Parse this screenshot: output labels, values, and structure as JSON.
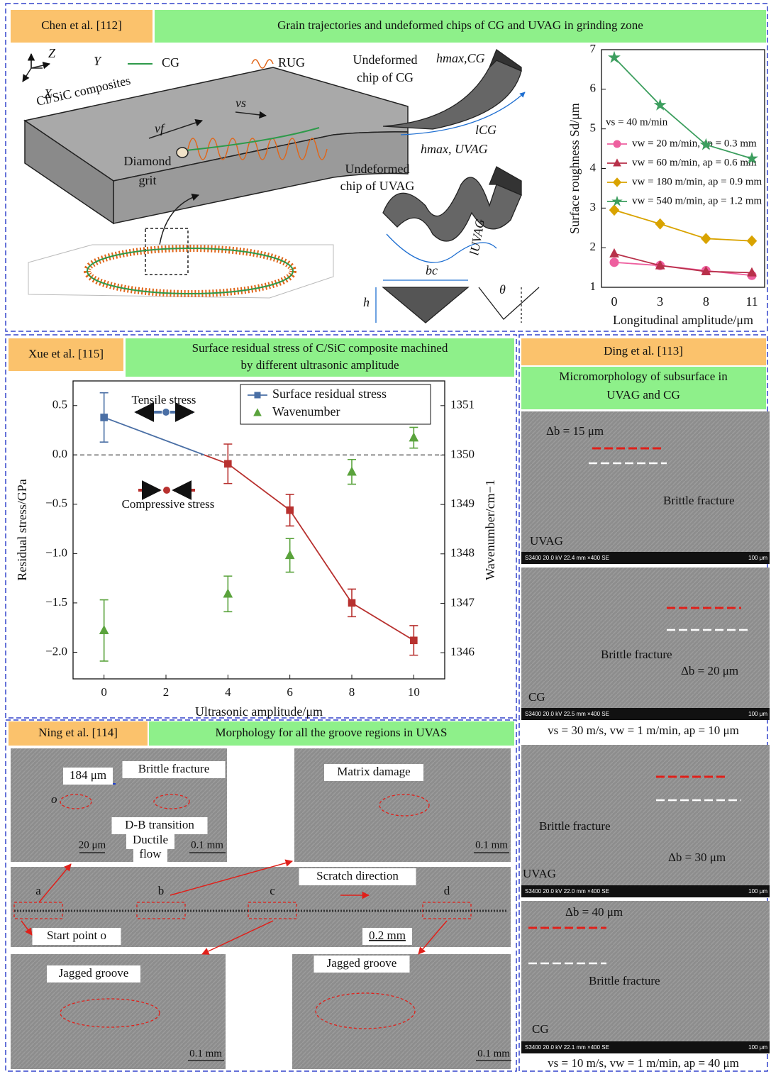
{
  "panel_a": {
    "citation": "Chen et al. [112]",
    "title": "Grain trajectories and undeformed chips of CG and UVAG in grinding zone",
    "diagram": {
      "axis_z": "Z",
      "axis_y": "Y",
      "axis_x": "X",
      "legend_cg": "CG",
      "legend_rug": "RUG",
      "material": "Cf/SiC composites",
      "feed": "vf",
      "speed": "vs",
      "grit_1": "Diamond",
      "grit_2": "grit",
      "chip_cg_1": "Undeformed",
      "chip_cg_2": "chip of CG",
      "hmax_cg": "hmax,CG",
      "l_cg": "lCG",
      "hmax_uvag": "hmax, UVAG",
      "chip_uvag_1": "Undeformed",
      "chip_uvag_2": "chip of UVAG",
      "l_uvag": "lUVAG",
      "bc": "bc",
      "h": "h",
      "theta": "θ"
    }
  },
  "panel_b": {
    "citation": "Xue et al. [115]",
    "title_1": "Surface residual stress of C/SiC composite machined",
    "title_2": "by different ultrasonic amplitude",
    "tensile": "Tensile stress",
    "compressive": "Compressive stress"
  },
  "panel_c": {
    "citation": "Ding et al. [113]",
    "title_1": "Micromorphology of subsurface in",
    "title_2": "UVAG and CG",
    "images": [
      {
        "delta": "Δb = 15 μm",
        "feature": "Brittle fracture",
        "mode": "UVAG",
        "info": "S3400 20.0 kV 22.4 mm ×400 SE",
        "scale": "100 μm"
      },
      {
        "delta": "Δb = 20 μm",
        "feature": "Brittle fracture",
        "mode": "CG",
        "info": "S3400 20.0 kV 22.5 mm ×400 SE",
        "scale": "100 μm"
      },
      {
        "delta": "Δb = 30 μm",
        "feature": "Brittle fracture",
        "mode": "UVAG",
        "info": "S3400 20.0 kV 22.0 mm ×400 SE",
        "scale": "100 μm"
      },
      {
        "delta": "Δb = 40 μm",
        "feature": "Brittle fracture",
        "mode": "CG",
        "info": "S3400 20.0 kV 22.1 mm ×400 SE",
        "scale": "100 μm"
      }
    ],
    "condition_1": "vs = 30 m/s, vw = 1 m/min, ap = 10 μm",
    "condition_2": "vs = 10 m/s, vw = 1 m/min, ap = 40 μm"
  },
  "panel_d": {
    "citation": "Ning et al. [114]",
    "title": "Morphology for all the groove regions in UVAS",
    "width": "184 μm",
    "brittle": "Brittle fracture",
    "origin": "o",
    "db": "D-B transition",
    "ductile_1": "Ductile",
    "ductile_2": "flow",
    "scale_20": "20 μm",
    "scale_a": "0.1 mm",
    "matrix": "Matrix damage",
    "scale_b": "0.1 mm",
    "direction": "Scratch direction",
    "mark_a": "a",
    "mark_b": "b",
    "mark_c": "c",
    "mark_d": "d",
    "start": "Start point o",
    "scale_main": "0.2 mm",
    "jagged_c": "Jagged groove",
    "scale_c": "0.1 mm",
    "jagged_d": "Jagged groove",
    "scale_d": "0.1 mm"
  },
  "chart_data": [
    {
      "type": "line",
      "categories": [
        "0",
        "3",
        "8",
        "11"
      ],
      "xlabel": "Longitudinal amplitude/μm",
      "ylabel": "Surface roughness Sd/μm",
      "ylim": [
        1,
        7
      ],
      "yticks": [
        1,
        2,
        3,
        4,
        5,
        6,
        7
      ],
      "annotation": "vs = 40 m/min",
      "legend": "center left",
      "series": [
        {
          "name": "vw = 20 m/min, ap = 0.3 mm",
          "color": "#ee5f9f",
          "marker": "circle",
          "values": [
            1.63,
            1.55,
            1.42,
            1.3
          ]
        },
        {
          "name": "vw = 60 m/min, ap = 0.6 mm",
          "color": "#b8314a",
          "marker": "triangle",
          "values": [
            1.85,
            1.55,
            1.4,
            1.37
          ]
        },
        {
          "name": "vw = 180 m/min, ap = 0.9 mm",
          "color": "#d9a300",
          "marker": "diamond",
          "values": [
            2.95,
            2.6,
            2.23,
            2.17
          ]
        },
        {
          "name": "vw = 540 m/min, ap = 1.2 mm",
          "color": "#3c9e5e",
          "marker": "star",
          "values": [
            6.8,
            5.6,
            4.6,
            4.25
          ]
        }
      ]
    },
    {
      "type": "line",
      "x": [
        0,
        4,
        6,
        8,
        10
      ],
      "xlim": [
        -1,
        11
      ],
      "xticks": [
        0,
        2,
        4,
        6,
        8,
        10
      ],
      "xlabel": "Ultrasonic amplitude/μm",
      "ylabel": "Residual stress/GPa",
      "ylim": [
        -2.27,
        0.75
      ],
      "yticks": [
        {
          "value": 0.5,
          "label": "0.5"
        },
        {
          "value": 0,
          "label": "0.0"
        },
        {
          "value": -0.5,
          "label": "−0.5"
        },
        {
          "value": -1,
          "label": "−1.0"
        },
        {
          "value": -1.5,
          "label": "−1.5"
        },
        {
          "value": -2,
          "label": "−2.0"
        }
      ],
      "y2label": "Wavenumber/cm−1",
      "y2lim": [
        1345.47,
        1351.5
      ],
      "y2ticks": [
        1346,
        1347,
        1348,
        1349,
        1350,
        1351
      ],
      "zero_line": true,
      "legend": "upper right",
      "series": [
        {
          "name": "Surface residual stress",
          "color": "#4a6fa5",
          "negative_color": "#b8312f",
          "marker": "square",
          "values": [
            0.38,
            -0.09,
            -0.56,
            -1.5,
            -1.88
          ],
          "errors": [
            0.25,
            0.2,
            0.16,
            0.14,
            0.15
          ]
        },
        {
          "name": "Wavenumber",
          "color": "#5aa33c",
          "marker": "triangle",
          "line": false,
          "axis": "y2",
          "values": [
            1346.45,
            1347.19,
            1347.97,
            1349.66,
            1350.35
          ],
          "errors": [
            0.62,
            0.36,
            0.34,
            0.25,
            0.21
          ]
        }
      ]
    }
  ]
}
